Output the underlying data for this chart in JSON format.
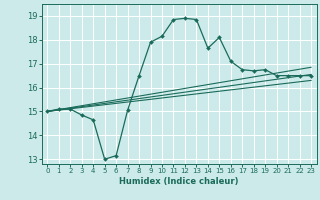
{
  "xlabel": "Humidex (Indice chaleur)",
  "bg_color": "#cceaea",
  "grid_color": "#ffffff",
  "line_color": "#1a6b5a",
  "xlim": [
    -0.5,
    23.5
  ],
  "ylim": [
    12.8,
    19.5
  ],
  "yticks": [
    13,
    14,
    15,
    16,
    17,
    18,
    19
  ],
  "xticks": [
    0,
    1,
    2,
    3,
    4,
    5,
    6,
    7,
    8,
    9,
    10,
    11,
    12,
    13,
    14,
    15,
    16,
    17,
    18,
    19,
    20,
    21,
    22,
    23
  ],
  "line1_x": [
    0,
    1,
    2,
    3,
    4,
    5,
    6,
    7,
    8,
    9,
    10,
    11,
    12,
    13,
    14,
    15,
    16,
    17,
    18,
    19,
    20,
    21,
    22,
    23
  ],
  "line1_y": [
    15.0,
    15.1,
    15.1,
    14.85,
    14.65,
    13.0,
    13.15,
    15.05,
    16.5,
    17.9,
    18.15,
    18.85,
    18.9,
    18.85,
    17.65,
    18.1,
    17.1,
    16.75,
    16.7,
    16.75,
    16.5,
    16.5,
    16.5,
    16.5
  ],
  "line2_x": [
    0,
    23
  ],
  "line2_y": [
    15.0,
    16.85
  ],
  "line3_x": [
    0,
    23
  ],
  "line3_y": [
    15.0,
    16.55
  ],
  "line4_x": [
    0,
    23
  ],
  "line4_y": [
    15.0,
    16.3
  ]
}
